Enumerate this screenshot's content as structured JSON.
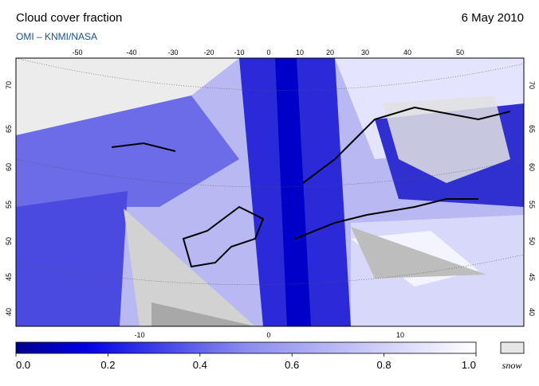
{
  "header": {
    "title": "Cloud cover fraction",
    "subtitle": "OMI  –  KNMI/NASA",
    "date": "6 May 2010"
  },
  "map": {
    "top_lon_labels": [
      "-50",
      "-40",
      "-30",
      "-20",
      "-10",
      "0",
      "10",
      "20",
      "30",
      "40",
      "50"
    ],
    "bottom_lon_labels": [
      "-10",
      "0",
      "10"
    ],
    "left_lat_labels": [
      "70",
      "65",
      "60",
      "55",
      "50",
      "45",
      "40"
    ],
    "right_lat_labels": [
      "70",
      "65",
      "60",
      "55",
      "50",
      "45",
      "40"
    ]
  },
  "colorbar": {
    "ticks": [
      "0.0",
      "0.2",
      "0.4",
      "0.6",
      "0.8",
      "1.0"
    ],
    "snow_label": "snow"
  }
}
